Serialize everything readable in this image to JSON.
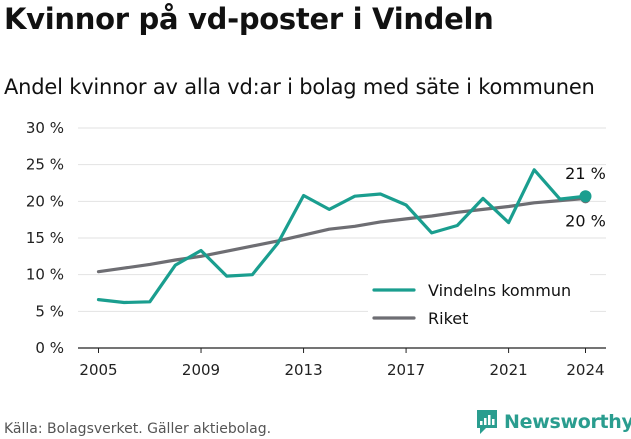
{
  "header": {
    "title": "Kvinnor på vd-poster i Vindeln",
    "subtitle": "Andel kvinnor av alla vd:ar i bolag med säte i kommunen"
  },
  "footer": {
    "source": "Källa: Bolagsverket. Gäller aktiebolag.",
    "brand": "Newsworthy"
  },
  "chart_data": {
    "type": "line",
    "x": [
      2005,
      2006,
      2007,
      2008,
      2009,
      2010,
      2011,
      2012,
      2013,
      2014,
      2015,
      2016,
      2017,
      2018,
      2019,
      2020,
      2021,
      2022,
      2023,
      2024
    ],
    "series": [
      {
        "name": "Vindelns kommun",
        "color": "#1a9e8f",
        "values": [
          6.6,
          6.2,
          6.3,
          11.3,
          13.3,
          9.8,
          10.0,
          14.3,
          20.8,
          18.9,
          20.7,
          21.0,
          19.5,
          15.7,
          16.7,
          20.4,
          17.1,
          24.3,
          20.3,
          20.7
        ]
      },
      {
        "name": "Riket",
        "color": "#6e6e73",
        "values": [
          10.4,
          10.9,
          11.4,
          12.0,
          12.5,
          13.2,
          13.9,
          14.6,
          15.4,
          16.2,
          16.6,
          17.2,
          17.6,
          18.0,
          18.5,
          18.9,
          19.3,
          19.8,
          20.1,
          20.4
        ]
      }
    ],
    "xticks": [
      "2005",
      "2009",
      "2013",
      "2017",
      "2021",
      "2024"
    ],
    "yticks": [
      "0 %",
      "5 %",
      "10 %",
      "15 %",
      "20 %",
      "25 %",
      "30 %"
    ],
    "ylim": [
      0,
      30
    ],
    "xlim": [
      2004.2,
      2024.8
    ],
    "end_labels": {
      "series0": "21 %",
      "series1": "20 %"
    },
    "legend_placement": "bottom-right",
    "grid": "horizontal"
  }
}
